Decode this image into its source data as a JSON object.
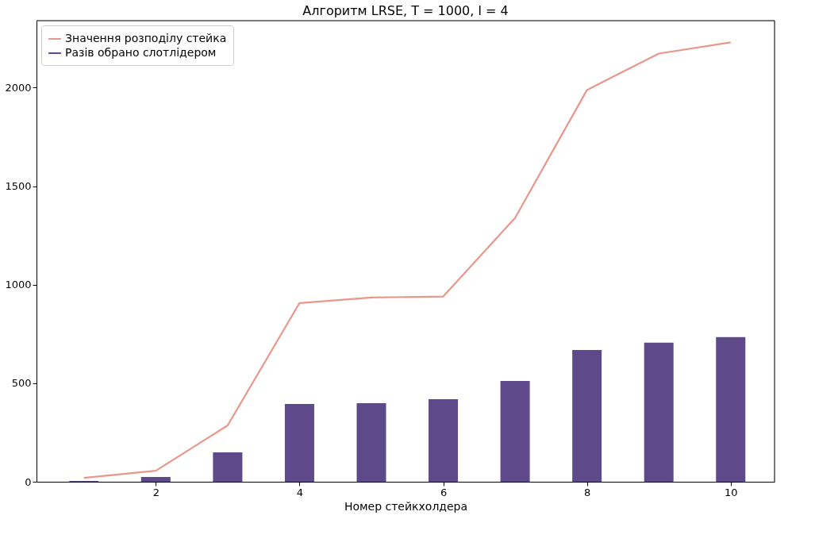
{
  "chart_data": {
    "type": "bar",
    "title": "Алгоритм LRSE, T = 1000, l = 4",
    "xlabel": "Номер стейкхолдера",
    "x": [
      1,
      2,
      3,
      4,
      5,
      6,
      7,
      8,
      9,
      10
    ],
    "series": [
      {
        "name": "Значення розподілу стейка",
        "type": "line",
        "color": "#e8988a",
        "values": [
          20,
          56,
          286,
          907,
          935,
          940,
          1339,
          1988,
          2173,
          2230
        ]
      },
      {
        "name": "Разів обрано слотлідером",
        "color": "#5e4a8a",
        "values": [
          4,
          24,
          149,
          395,
          399,
          419,
          512,
          669,
          706,
          734
        ]
      }
    ],
    "xlim": [
      0.34,
      10.61
    ],
    "xticks": [
      2,
      4,
      6,
      8,
      10
    ],
    "ylim": [
      0,
      2340
    ],
    "yticks": [
      0,
      500,
      1000,
      1500,
      2000
    ],
    "grid": false,
    "legend": "top left"
  }
}
